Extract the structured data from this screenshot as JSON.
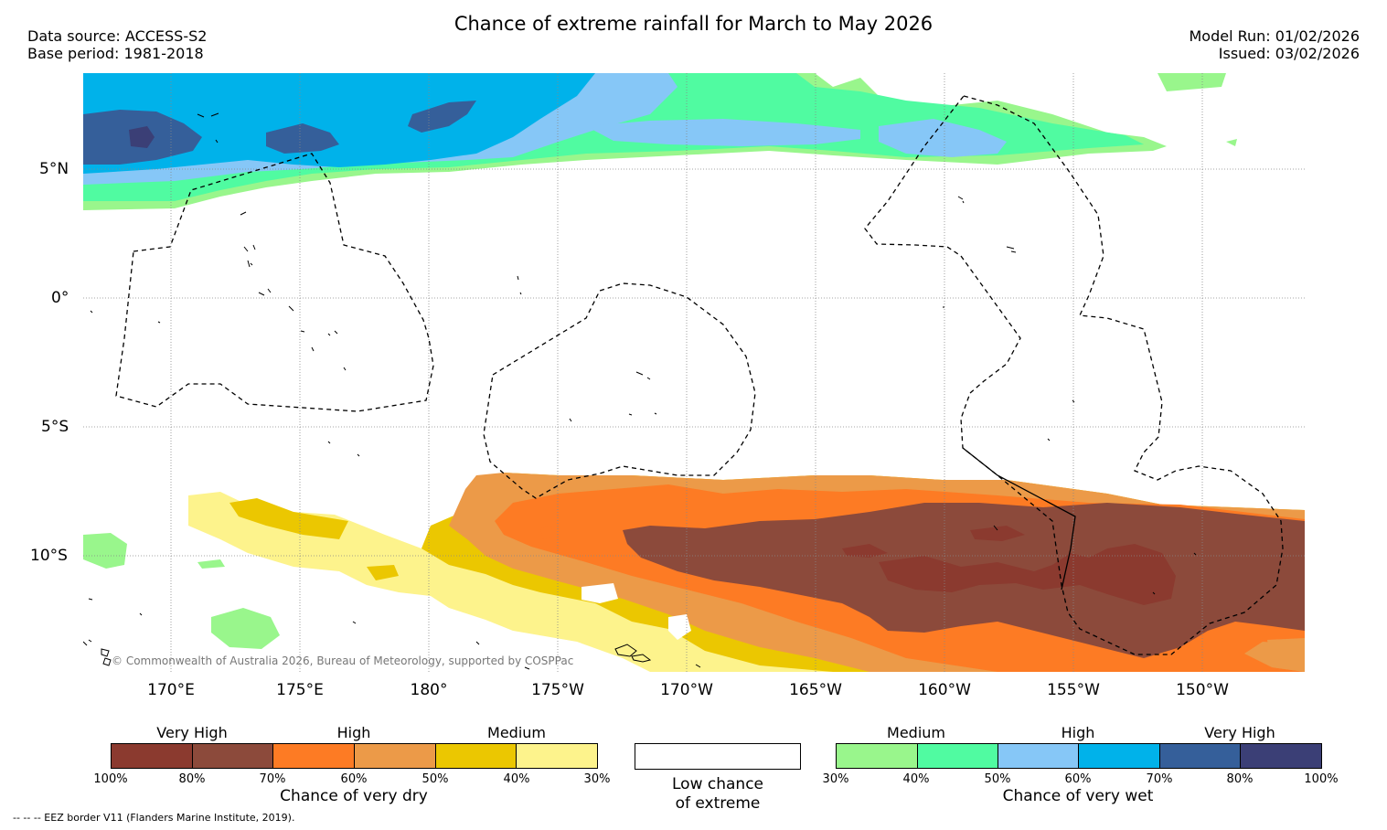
{
  "title": "Chance of extreme rainfall for March to May 2026",
  "data_source": "Data source: ACCESS-S2",
  "base_period": "Base period: 1981-2018",
  "model_run": "Model Run: 01/02/2026",
  "issued": "Issued: 03/02/2026",
  "longitude_labels": [
    "170°E",
    "175°E",
    "180°",
    "175°W",
    "170°W",
    "165°W",
    "160°W",
    "155°W",
    "150°W"
  ],
  "latitude_labels": [
    "5°N",
    "0°",
    "5°S",
    "10°S"
  ],
  "copyright": "© Commonwealth of Australia 2026, Bureau of Meteorology, supported by COSPPac",
  "legend": {
    "dry": {
      "categories": [
        "Very High",
        "High",
        "Medium"
      ],
      "ticks": [
        "100%",
        "80%",
        "70%",
        "60%",
        "50%",
        "40%",
        "30%"
      ],
      "colors": [
        "#8b3a2f",
        "#8c4a3b",
        "#fd7b24",
        "#ec9a48",
        "#ebc701",
        "#fdf38c"
      ],
      "title": "Chance of very dry"
    },
    "low": {
      "line1": "Low chance",
      "line2": "of extreme"
    },
    "wet": {
      "categories": [
        "Medium",
        "High",
        "Very High"
      ],
      "ticks": [
        "30%",
        "40%",
        "50%",
        "60%",
        "70%",
        "80%",
        "100%"
      ],
      "colors": [
        "#99f68c",
        "#50fba1",
        "#86c7f7",
        "#00b2ea",
        "#355f9a",
        "#3b3f76"
      ],
      "title": "Chance of very wet"
    }
  },
  "eez_note": "-- -- -- EEZ border V11 (Flanders Marine Institute, 2019).",
  "colors": {
    "very_dry_high": "#8b3a2f",
    "very_wet_high": "#3b3f76",
    "background": "#ffffff"
  }
}
